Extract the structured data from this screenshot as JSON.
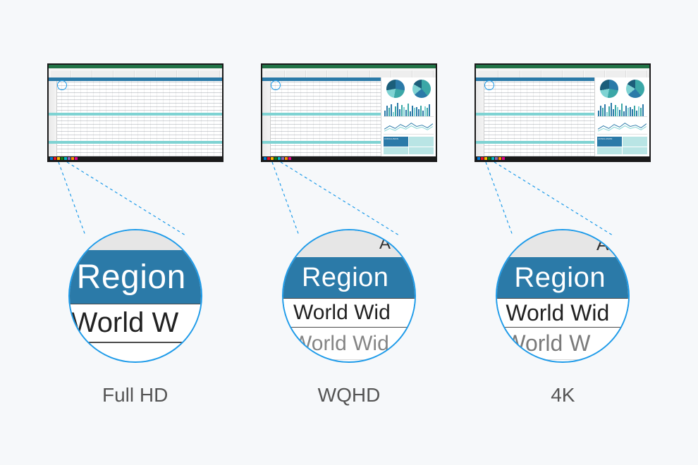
{
  "background_color": "#f6f8fa",
  "resolutions": [
    {
      "key": "fhd",
      "label": "Full HD",
      "show_col_letter": false,
      "show_second_row": false,
      "show_side_panel": false
    },
    {
      "key": "wqhd",
      "label": "WQHD",
      "show_col_letter": true,
      "show_second_row": true,
      "show_side_panel": true
    },
    {
      "key": "4k",
      "label": "4K",
      "show_col_letter": true,
      "show_second_row": true,
      "show_side_panel": true
    }
  ],
  "magnifier": {
    "column_letter": "A",
    "header_text": "Region",
    "row1_text": "World Wid",
    "row1_text_fhd": "World W",
    "row2_text_wqhd": "World Wid",
    "row2_text_4k": "World W",
    "circle_border_color": "#1e9be9",
    "header_band_color": "#2b7aa8",
    "col_header_bg": "#e6e6e6"
  },
  "excel": {
    "titlebar_color": "#217346",
    "header_row_color": "#2b7aa8",
    "highlight_row_color": "#7fd3d3",
    "conclusion_label": "CONCLUSION",
    "conclusion_tile_color": "#b9e5e5",
    "conclusion_dark_color": "#2b7aa8",
    "pie_colors": [
      "#2b7aa8",
      "#3ba7a7",
      "#7fd3d3",
      "#1b5e7a"
    ],
    "bar_heights_pct": [
      40,
      70,
      55,
      80,
      30,
      65,
      90,
      50,
      75,
      60,
      45,
      85,
      35,
      70,
      55,
      60,
      48,
      72,
      40,
      66,
      58,
      80
    ],
    "line_points": [
      [
        0,
        15
      ],
      [
        8,
        10
      ],
      [
        16,
        14
      ],
      [
        24,
        8
      ],
      [
        32,
        12
      ],
      [
        40,
        6
      ],
      [
        48,
        11
      ],
      [
        56,
        9
      ],
      [
        64,
        13
      ],
      [
        72,
        7
      ]
    ],
    "line_points2": [
      [
        0,
        18
      ],
      [
        8,
        14
      ],
      [
        16,
        17
      ],
      [
        24,
        12
      ],
      [
        32,
        15
      ],
      [
        40,
        10
      ],
      [
        48,
        14
      ],
      [
        56,
        12
      ],
      [
        64,
        16
      ],
      [
        72,
        11
      ]
    ],
    "taskbar_icon_colors": [
      "#0078d4",
      "#e81123",
      "#ffb900",
      "#107c10",
      "#00b7c3",
      "#8764b8",
      "#ff8c00",
      "#e3008c"
    ]
  },
  "connector": {
    "dash_color": "#1e9be9",
    "dash_pattern": "4 4"
  }
}
